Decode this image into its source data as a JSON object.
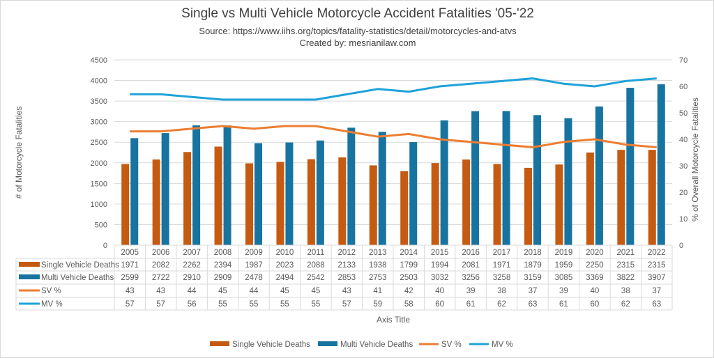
{
  "chart_data": {
    "type": "bar",
    "title": "Single vs Multi Vehicle Motorcycle Accident Fatalities '05-'22",
    "subtitle": [
      "Source: https://www.iihs.org/topics/fatality-statistics/detail/motorcycles-and-atvs",
      "Created by: mesrianilaw.com"
    ],
    "xlabel": "Axis Title",
    "ylabel": "# of Motorcycle Fatalities",
    "y2label": "% of Overall Motorcycle Fatalities",
    "ylim": [
      0,
      4500
    ],
    "yticks": [
      0,
      500,
      1000,
      1500,
      2000,
      2500,
      3000,
      3500,
      4000,
      4500
    ],
    "y2lim": [
      0,
      70
    ],
    "y2ticks": [
      0,
      10,
      20,
      30,
      40,
      50,
      60,
      70
    ],
    "grid": true,
    "legend": "bottom",
    "data_table": true,
    "categories": [
      "2005",
      "2006",
      "2007",
      "2008",
      "2009",
      "2010",
      "2011",
      "2012",
      "2013",
      "2014",
      "2015",
      "2016",
      "2017",
      "2018",
      "2019",
      "2020",
      "2021",
      "2022"
    ],
    "series": [
      {
        "name": "Single Vehicle Deaths",
        "type": "bar",
        "axis": "left",
        "color": "#C55A11",
        "values": [
          1971,
          2082,
          2262,
          2394,
          1987,
          2023,
          2088,
          2133,
          1938,
          1799,
          1994,
          2081,
          1971,
          1879,
          1959,
          2250,
          2315,
          2315
        ]
      },
      {
        "name": "Multi Vehicle Deaths",
        "type": "bar",
        "axis": "left",
        "color": "#17739F",
        "values": [
          2599,
          2722,
          2910,
          2909,
          2478,
          2494,
          2542,
          2853,
          2753,
          2503,
          3032,
          3256,
          3258,
          3159,
          3085,
          3369,
          3822,
          3907
        ]
      },
      {
        "name": "SV %",
        "type": "line",
        "axis": "right",
        "color": "#ED7D31",
        "values": [
          43,
          43,
          44,
          45,
          44,
          45,
          45,
          43,
          41,
          42,
          40,
          39,
          38,
          37,
          39,
          40,
          38,
          37
        ]
      },
      {
        "name": "MV %",
        "type": "line",
        "axis": "right",
        "color": "#1FA2DA",
        "values": [
          57,
          57,
          56,
          55,
          55,
          55,
          55,
          57,
          59,
          58,
          60,
          61,
          62,
          63,
          61,
          60,
          62,
          63
        ]
      }
    ]
  }
}
